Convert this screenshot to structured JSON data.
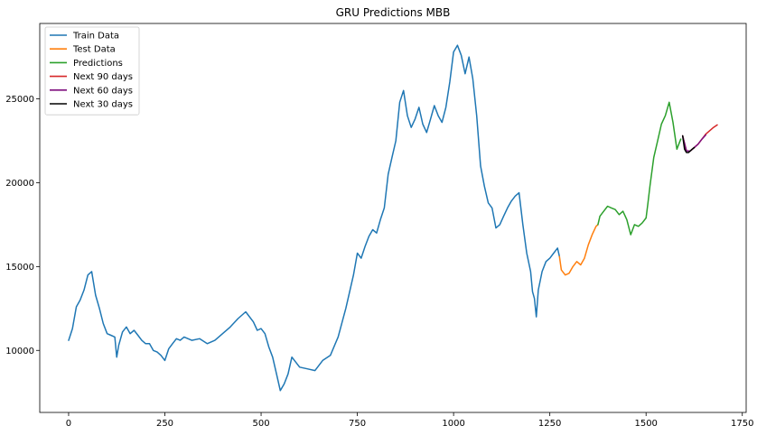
{
  "chart_data": {
    "type": "line",
    "title": "GRU Predictions MBB",
    "xlabel": "",
    "ylabel": "",
    "xlim": [
      -75,
      1760
    ],
    "ylim": [
      6300,
      29500
    ],
    "x_ticks": [
      0,
      250,
      500,
      750,
      1000,
      1250,
      1500,
      1750
    ],
    "y_ticks": [
      10000,
      15000,
      20000,
      25000
    ],
    "grid": false,
    "legend_position": "top-left",
    "series": [
      {
        "name": "Train Data",
        "color": "#1f77b4",
        "points": [
          [
            0,
            10600
          ],
          [
            10,
            11300
          ],
          [
            20,
            12600
          ],
          [
            30,
            13000
          ],
          [
            40,
            13600
          ],
          [
            50,
            14500
          ],
          [
            60,
            14700
          ],
          [
            70,
            13300
          ],
          [
            80,
            12500
          ],
          [
            90,
            11600
          ],
          [
            100,
            11000
          ],
          [
            110,
            10900
          ],
          [
            120,
            10800
          ],
          [
            125,
            9600
          ],
          [
            130,
            10300
          ],
          [
            140,
            11100
          ],
          [
            150,
            11400
          ],
          [
            160,
            11000
          ],
          [
            170,
            11200
          ],
          [
            180,
            10900
          ],
          [
            190,
            10600
          ],
          [
            200,
            10400
          ],
          [
            210,
            10400
          ],
          [
            220,
            10000
          ],
          [
            230,
            9900
          ],
          [
            240,
            9700
          ],
          [
            250,
            9400
          ],
          [
            260,
            10100
          ],
          [
            270,
            10400
          ],
          [
            280,
            10700
          ],
          [
            290,
            10600
          ],
          [
            300,
            10800
          ],
          [
            320,
            10600
          ],
          [
            340,
            10700
          ],
          [
            360,
            10400
          ],
          [
            380,
            10600
          ],
          [
            400,
            11000
          ],
          [
            420,
            11400
          ],
          [
            440,
            11900
          ],
          [
            460,
            12300
          ],
          [
            480,
            11700
          ],
          [
            490,
            11200
          ],
          [
            500,
            11300
          ],
          [
            510,
            11000
          ],
          [
            520,
            10200
          ],
          [
            530,
            9600
          ],
          [
            540,
            8600
          ],
          [
            550,
            7600
          ],
          [
            560,
            8000
          ],
          [
            570,
            8600
          ],
          [
            580,
            9600
          ],
          [
            600,
            9000
          ],
          [
            620,
            8900
          ],
          [
            640,
            8800
          ],
          [
            660,
            9400
          ],
          [
            680,
            9700
          ],
          [
            700,
            10800
          ],
          [
            720,
            12500
          ],
          [
            740,
            14500
          ],
          [
            750,
            15800
          ],
          [
            760,
            15500
          ],
          [
            770,
            16200
          ],
          [
            780,
            16800
          ],
          [
            790,
            17200
          ],
          [
            800,
            17000
          ],
          [
            810,
            17800
          ],
          [
            820,
            18500
          ],
          [
            830,
            20500
          ],
          [
            840,
            21500
          ],
          [
            850,
            22500
          ],
          [
            860,
            24800
          ],
          [
            870,
            25500
          ],
          [
            880,
            24000
          ],
          [
            890,
            23300
          ],
          [
            900,
            23800
          ],
          [
            910,
            24500
          ],
          [
            920,
            23500
          ],
          [
            930,
            23000
          ],
          [
            940,
            23800
          ],
          [
            950,
            24600
          ],
          [
            960,
            24000
          ],
          [
            970,
            23600
          ],
          [
            980,
            24500
          ],
          [
            990,
            26000
          ],
          [
            1000,
            27800
          ],
          [
            1010,
            28200
          ],
          [
            1020,
            27600
          ],
          [
            1030,
            26500
          ],
          [
            1040,
            27500
          ],
          [
            1050,
            26200
          ],
          [
            1060,
            24000
          ],
          [
            1070,
            21000
          ],
          [
            1080,
            19800
          ],
          [
            1090,
            18800
          ],
          [
            1100,
            18500
          ],
          [
            1110,
            17300
          ],
          [
            1120,
            17500
          ],
          [
            1130,
            18000
          ],
          [
            1140,
            18500
          ],
          [
            1150,
            18900
          ],
          [
            1160,
            19200
          ],
          [
            1170,
            19400
          ],
          [
            1180,
            17500
          ],
          [
            1190,
            15800
          ],
          [
            1200,
            14700
          ],
          [
            1205,
            13500
          ],
          [
            1210,
            13100
          ],
          [
            1215,
            12000
          ],
          [
            1220,
            13600
          ],
          [
            1230,
            14700
          ],
          [
            1240,
            15300
          ],
          [
            1250,
            15500
          ],
          [
            1260,
            15800
          ],
          [
            1270,
            16100
          ],
          [
            1275,
            15600
          ]
        ]
      },
      {
        "name": "Test Data",
        "color": "#ff7f0e",
        "points": [
          [
            1275,
            15600
          ],
          [
            1280,
            14800
          ],
          [
            1290,
            14500
          ],
          [
            1300,
            14600
          ],
          [
            1310,
            15000
          ],
          [
            1320,
            15300
          ],
          [
            1330,
            15100
          ],
          [
            1340,
            15500
          ],
          [
            1350,
            16300
          ],
          [
            1360,
            16900
          ],
          [
            1370,
            17400
          ],
          [
            1375,
            17500
          ]
        ]
      },
      {
        "name": "Predictions",
        "color": "#2ca02c",
        "points": [
          [
            1375,
            17500
          ],
          [
            1380,
            18000
          ],
          [
            1390,
            18300
          ],
          [
            1400,
            18600
          ],
          [
            1410,
            18500
          ],
          [
            1420,
            18400
          ],
          [
            1430,
            18100
          ],
          [
            1440,
            18300
          ],
          [
            1450,
            17800
          ],
          [
            1460,
            16900
          ],
          [
            1470,
            17500
          ],
          [
            1480,
            17400
          ],
          [
            1490,
            17600
          ],
          [
            1500,
            17900
          ],
          [
            1505,
            18800
          ],
          [
            1510,
            19800
          ],
          [
            1520,
            21500
          ],
          [
            1530,
            22500
          ],
          [
            1540,
            23500
          ],
          [
            1550,
            24000
          ],
          [
            1560,
            24800
          ],
          [
            1570,
            23600
          ],
          [
            1580,
            22000
          ],
          [
            1590,
            22600
          ]
        ]
      },
      {
        "name": "Next 90 days",
        "color": "#d62728",
        "points": [
          [
            1595,
            22800
          ],
          [
            1605,
            21900
          ],
          [
            1615,
            21900
          ],
          [
            1625,
            22100
          ],
          [
            1635,
            22300
          ],
          [
            1645,
            22600
          ],
          [
            1655,
            22900
          ],
          [
            1665,
            23100
          ],
          [
            1675,
            23300
          ],
          [
            1685,
            23450
          ]
        ]
      },
      {
        "name": "Next 60 days",
        "color": "#7f0f7e",
        "points": [
          [
            1595,
            22800
          ],
          [
            1605,
            21900
          ],
          [
            1615,
            21900
          ],
          [
            1625,
            22100
          ],
          [
            1635,
            22300
          ],
          [
            1645,
            22600
          ],
          [
            1655,
            22850
          ]
        ]
      },
      {
        "name": "Next 30 days",
        "color": "#000000",
        "points": [
          [
            1595,
            22800
          ],
          [
            1600,
            22000
          ],
          [
            1605,
            21800
          ],
          [
            1610,
            21800
          ],
          [
            1615,
            21900
          ],
          [
            1620,
            22000
          ],
          [
            1625,
            22100
          ]
        ]
      }
    ]
  }
}
